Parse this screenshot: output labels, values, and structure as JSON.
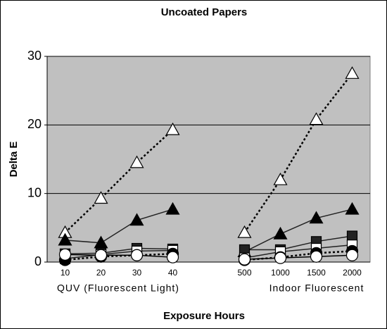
{
  "chart_data": {
    "type": "line",
    "title": "Uncoated Papers",
    "y_label": "Delta E",
    "x_label": "Exposure Hours",
    "groups": [
      "QUV (Fluorescent Light)",
      "Indoor Fluorescent"
    ],
    "categories": [
      "10",
      "20",
      "30",
      "40",
      null,
      "500",
      "1000",
      "1500",
      "2000"
    ],
    "ylim": [
      0,
      30
    ],
    "yticks": [
      0,
      10,
      20,
      30
    ],
    "grid": true,
    "plot_color": "#c0c0c0",
    "series": [
      {
        "marker": "triangle",
        "fill": "#ffffff",
        "color": "#000000",
        "dash": true,
        "values": [
          4.3,
          9.3,
          14.5,
          19.3,
          null,
          4.3,
          12,
          20.8,
          27.5
        ]
      },
      {
        "marker": "triangle",
        "fill": "#000000",
        "color": "#222222",
        "dash": false,
        "values": [
          3.2,
          2.8,
          6.1,
          7.7,
          null,
          1.5,
          4.1,
          6.4,
          7.7
        ]
      },
      {
        "marker": "square",
        "fill": "#222222",
        "color": "#222222",
        "dash": false,
        "values": [
          1.2,
          1.3,
          2.0,
          1.9,
          null,
          1.8,
          1.8,
          3.0,
          3.8
        ]
      },
      {
        "marker": "square",
        "fill": "#ffffff",
        "color": "#222222",
        "dash": false,
        "values": [
          0.5,
          1.1,
          1.6,
          1.7,
          null,
          0.6,
          1.5,
          2.0,
          2.5
        ]
      },
      {
        "marker": "circle",
        "fill": "#000000",
        "color": "#000000",
        "dash": true,
        "values": [
          0.3,
          0.8,
          1.0,
          1.2,
          null,
          0.3,
          0.7,
          1.3,
          1.6
        ]
      },
      {
        "marker": "circle",
        "fill": "#ffffff",
        "color": "#000000",
        "dash": false,
        "values": [
          1.1,
          1.0,
          1.0,
          0.7,
          null,
          0.4,
          0.6,
          0.8,
          1.0
        ]
      }
    ]
  }
}
